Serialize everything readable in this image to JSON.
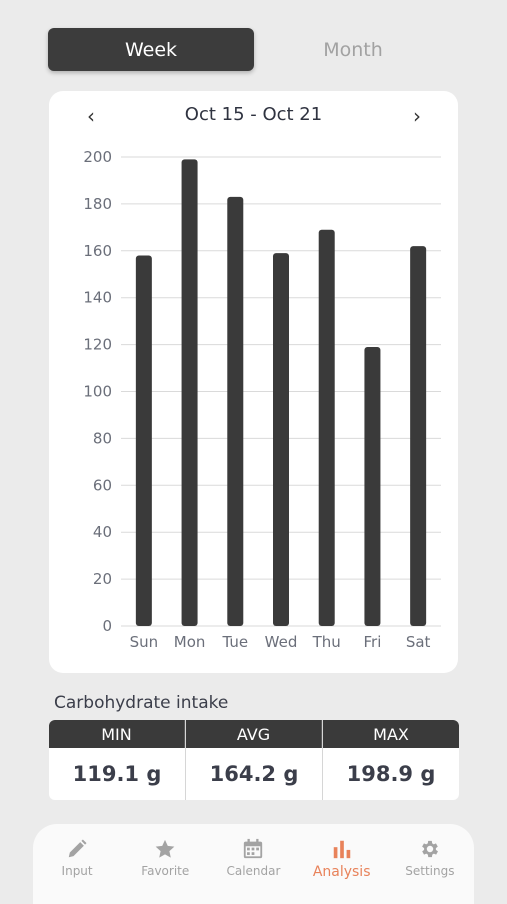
{
  "segment": {
    "week_label": "Week",
    "month_label": "Month"
  },
  "chart_header": {
    "prev": "‹",
    "next": "›",
    "range": "Oct 15 - Oct 21"
  },
  "chart_data": {
    "type": "bar",
    "categories": [
      "Sun",
      "Mon",
      "Tue",
      "Wed",
      "Thu",
      "Fri",
      "Sat"
    ],
    "values": [
      158,
      199,
      183,
      159,
      169,
      119,
      162
    ],
    "ylim": [
      0,
      200
    ],
    "yticks": [
      0,
      20,
      40,
      60,
      80,
      100,
      120,
      140,
      160,
      180,
      200
    ],
    "grid": true,
    "bar_color": "#3a3a3a"
  },
  "stats": {
    "title": "Carbohydrate intake",
    "min_label": "MIN",
    "min_value": "119.1 g",
    "avg_label": "AVG",
    "avg_value": "164.2 g",
    "max_label": "MAX",
    "max_value": "198.9 g"
  },
  "tabs": {
    "input": {
      "label": "Input",
      "icon": "pencil-icon"
    },
    "favorite": {
      "label": "Favorite",
      "icon": "star-icon"
    },
    "calendar": {
      "label": "Calendar",
      "icon": "calendar-icon"
    },
    "analysis": {
      "label": "Analysis",
      "icon": "bar-chart-icon"
    },
    "settings": {
      "label": "Settings",
      "icon": "gear-icon"
    }
  },
  "colors": {
    "accent": "#e8825a",
    "dark": "#3a3a3a",
    "background": "#ebebeb"
  }
}
